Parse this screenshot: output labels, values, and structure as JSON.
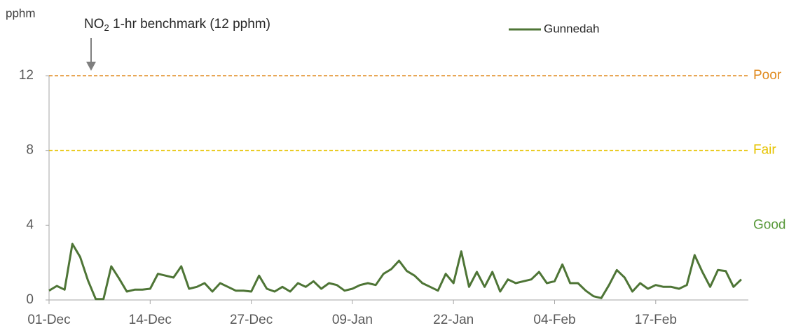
{
  "chart_data": {
    "type": "line",
    "y_label": "pphm",
    "annotation": {
      "prefix": "NO",
      "sub": "2",
      "text": " 1-hr benchmark (12 pphm)"
    },
    "categories": [
      "01-Dec",
      null,
      null,
      null,
      null,
      null,
      null,
      null,
      null,
      null,
      null,
      null,
      null,
      "14-Dec",
      null,
      null,
      null,
      null,
      null,
      null,
      null,
      null,
      null,
      null,
      null,
      null,
      "27-Dec",
      null,
      null,
      null,
      null,
      null,
      null,
      null,
      null,
      null,
      null,
      null,
      null,
      "09-Jan",
      null,
      null,
      null,
      null,
      null,
      null,
      null,
      null,
      null,
      null,
      null,
      null,
      "22-Jan",
      null,
      null,
      null,
      null,
      null,
      null,
      null,
      null,
      null,
      null,
      null,
      null,
      "04-Feb",
      null,
      null,
      null,
      null,
      null,
      null,
      null,
      null,
      null,
      null,
      null,
      null,
      "17-Feb",
      null,
      null,
      null,
      null,
      null,
      null,
      null,
      null,
      null,
      null,
      null
    ],
    "series": [
      {
        "name": "Gunnedah",
        "color": "#4e7536",
        "values": [
          0.5,
          0.75,
          0.55,
          3.0,
          2.3,
          1.05,
          0.05,
          0.05,
          1.8,
          1.15,
          0.45,
          0.55,
          0.55,
          0.6,
          1.4,
          1.3,
          1.2,
          1.8,
          0.6,
          0.7,
          0.9,
          0.45,
          0.9,
          0.7,
          0.5,
          0.5,
          0.45,
          1.3,
          0.6,
          0.45,
          0.7,
          0.45,
          0.9,
          0.7,
          1.0,
          0.6,
          0.9,
          0.8,
          0.5,
          0.6,
          0.8,
          0.9,
          0.8,
          1.4,
          1.65,
          2.1,
          1.55,
          1.3,
          0.9,
          0.7,
          0.5,
          1.4,
          0.9,
          2.6,
          0.7,
          1.5,
          0.7,
          1.5,
          0.45,
          1.1,
          0.9,
          1.0,
          1.1,
          1.5,
          0.9,
          1.0,
          1.9,
          0.9,
          0.9,
          0.5,
          0.2,
          0.1,
          0.8,
          1.6,
          1.2,
          0.45,
          0.9,
          0.6,
          0.8,
          0.7,
          0.7,
          0.6,
          0.8,
          2.4,
          1.5,
          0.7,
          1.6,
          1.55,
          0.7,
          1.1
        ]
      }
    ],
    "thresholds": [
      {
        "value": 12,
        "label": "Poor",
        "color": "#e08a1e"
      },
      {
        "value": 8,
        "label": "Fair",
        "color": "#e6c300"
      }
    ],
    "zone_labels": [
      {
        "value": 4,
        "label": "Good",
        "color": "#5a9a3c"
      }
    ],
    "ylim": [
      0,
      12
    ],
    "yticks": [
      0,
      4,
      8,
      12
    ],
    "legend": "top-right"
  }
}
